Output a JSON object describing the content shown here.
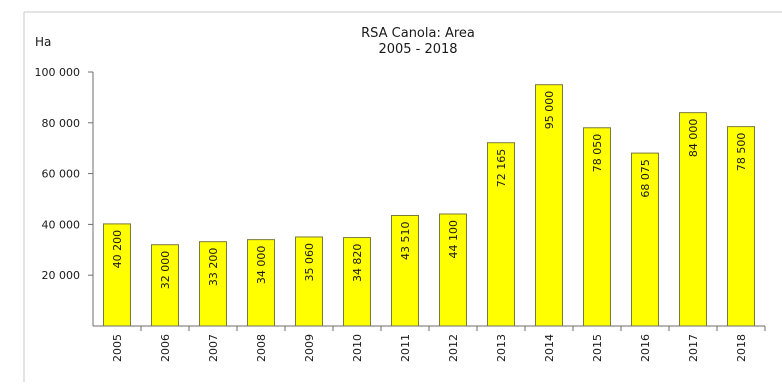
{
  "chart_data": {
    "type": "bar",
    "title": "RSA  Canola: Area",
    "subtitle": "2005 - 2018",
    "ylabel": "Ha",
    "xlabel": "",
    "categories": [
      "2005",
      "2006",
      "2007",
      "2008",
      "2009",
      "2010",
      "2011",
      "2012",
      "2013",
      "2014",
      "2015",
      "2016",
      "2017",
      "2018"
    ],
    "values": [
      40200,
      32000,
      33200,
      34000,
      35060,
      34820,
      43510,
      44100,
      72165,
      95000,
      78050,
      68075,
      84000,
      78500
    ],
    "data_labels": [
      "40 200",
      "32 000",
      "33 200",
      "34 000",
      "35 060",
      "34 820",
      "43 510",
      "44 100",
      "72 165",
      "95 000",
      "78 050",
      "68 075",
      "84 000",
      "78 500"
    ],
    "ylim": [
      0,
      100000
    ],
    "yticks": [
      20000,
      40000,
      60000,
      80000,
      100000
    ],
    "ytick_labels": [
      "20 000",
      "40 000",
      "60 000",
      "80 000",
      "100 000"
    ],
    "grid": false,
    "legend": "none",
    "colors": {
      "bar_fill": "#ffff00",
      "bar_stroke": "#7a7a3a",
      "axis": "#6e6e6e"
    }
  }
}
